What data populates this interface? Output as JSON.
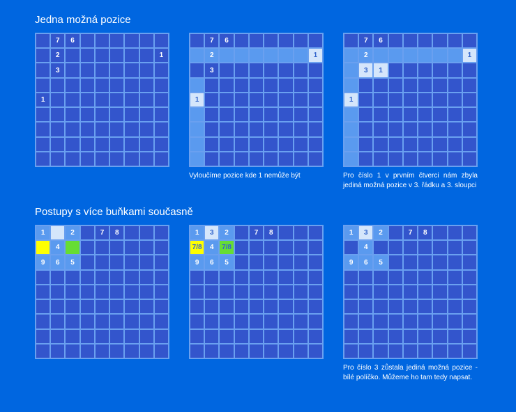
{
  "titles": {
    "section1": "Jedna možná pozice",
    "section2": "Postupy s více buňkami současně"
  },
  "captions": {
    "g2": "Vyloučíme pozice kde 1 nemůže být",
    "g3": "Pro číslo 1 v prvním čtverci nám zbyla jediná možná pozice v 3. řádku a 3. sloupci",
    "g6": "Pro číslo 3 zůstala jediná možná pozice - bílé políčko. Můžeme ho tam tedy napsat."
  },
  "grids": {
    "g1": {
      "cells": [
        {
          "r": 0,
          "c": 1,
          "v": "7"
        },
        {
          "r": 0,
          "c": 2,
          "v": "6"
        },
        {
          "r": 1,
          "c": 1,
          "v": "2"
        },
        {
          "r": 1,
          "c": 8,
          "v": "1"
        },
        {
          "r": 2,
          "c": 1,
          "v": "3"
        },
        {
          "r": 4,
          "c": 0,
          "v": "1"
        }
      ]
    },
    "g2": {
      "cells": [
        {
          "r": 0,
          "c": 1,
          "v": "7"
        },
        {
          "r": 0,
          "c": 2,
          "v": "6"
        },
        {
          "r": 1,
          "c": 0,
          "cls": "hl-light"
        },
        {
          "r": 1,
          "c": 1,
          "v": "2",
          "cls": "hl-light"
        },
        {
          "r": 1,
          "c": 2,
          "cls": "hl-light"
        },
        {
          "r": 1,
          "c": 3,
          "cls": "hl-light"
        },
        {
          "r": 1,
          "c": 4,
          "cls": "hl-light"
        },
        {
          "r": 1,
          "c": 5,
          "cls": "hl-light"
        },
        {
          "r": 1,
          "c": 6,
          "cls": "hl-light"
        },
        {
          "r": 1,
          "c": 7,
          "cls": "hl-light"
        },
        {
          "r": 1,
          "c": 8,
          "v": "1",
          "cls": "hl-white"
        },
        {
          "r": 2,
          "c": 1,
          "v": "3"
        },
        {
          "r": 3,
          "c": 0,
          "cls": "hl-light"
        },
        {
          "r": 4,
          "c": 0,
          "v": "1",
          "cls": "hl-white"
        },
        {
          "r": 5,
          "c": 0,
          "cls": "hl-light"
        },
        {
          "r": 6,
          "c": 0,
          "cls": "hl-light"
        },
        {
          "r": 7,
          "c": 0,
          "cls": "hl-light"
        },
        {
          "r": 8,
          "c": 0,
          "cls": "hl-light"
        }
      ]
    },
    "g3": {
      "cells": [
        {
          "r": 0,
          "c": 1,
          "v": "7"
        },
        {
          "r": 0,
          "c": 2,
          "v": "6"
        },
        {
          "r": 1,
          "c": 0,
          "cls": "hl-light"
        },
        {
          "r": 1,
          "c": 1,
          "v": "2",
          "cls": "hl-light"
        },
        {
          "r": 1,
          "c": 2,
          "cls": "hl-light"
        },
        {
          "r": 1,
          "c": 3,
          "cls": "hl-light"
        },
        {
          "r": 1,
          "c": 4,
          "cls": "hl-light"
        },
        {
          "r": 1,
          "c": 5,
          "cls": "hl-light"
        },
        {
          "r": 1,
          "c": 6,
          "cls": "hl-light"
        },
        {
          "r": 1,
          "c": 7,
          "cls": "hl-light"
        },
        {
          "r": 1,
          "c": 8,
          "v": "1",
          "cls": "hl-white"
        },
        {
          "r": 2,
          "c": 0,
          "cls": "hl-light"
        },
        {
          "r": 2,
          "c": 1,
          "v": "3",
          "cls": "hl-white"
        },
        {
          "r": 2,
          "c": 2,
          "v": "1",
          "cls": "hl-white"
        },
        {
          "r": 3,
          "c": 0,
          "cls": "hl-light"
        },
        {
          "r": 4,
          "c": 0,
          "v": "1",
          "cls": "hl-white"
        },
        {
          "r": 5,
          "c": 0,
          "cls": "hl-light"
        },
        {
          "r": 6,
          "c": 0,
          "cls": "hl-light"
        },
        {
          "r": 7,
          "c": 0,
          "cls": "hl-light"
        },
        {
          "r": 8,
          "c": 0,
          "cls": "hl-light"
        }
      ]
    },
    "g4": {
      "cells": [
        {
          "r": 0,
          "c": 0,
          "v": "1",
          "cls": "hl-light"
        },
        {
          "r": 0,
          "c": 1,
          "cls": "hl-white"
        },
        {
          "r": 0,
          "c": 2,
          "v": "2",
          "cls": "hl-light"
        },
        {
          "r": 0,
          "c": 4,
          "v": "7"
        },
        {
          "r": 0,
          "c": 5,
          "v": "8"
        },
        {
          "r": 1,
          "c": 0,
          "cls": "hl-yellow"
        },
        {
          "r": 1,
          "c": 1,
          "v": "4",
          "cls": "hl-light"
        },
        {
          "r": 1,
          "c": 2,
          "cls": "hl-green"
        },
        {
          "r": 2,
          "c": 0,
          "v": "9",
          "cls": "hl-light"
        },
        {
          "r": 2,
          "c": 1,
          "v": "6",
          "cls": "hl-light"
        },
        {
          "r": 2,
          "c": 2,
          "v": "5",
          "cls": "hl-light"
        }
      ]
    },
    "g5": {
      "cells": [
        {
          "r": 0,
          "c": 0,
          "v": "1",
          "cls": "hl-light"
        },
        {
          "r": 0,
          "c": 1,
          "v": "3",
          "cls": "hl-white"
        },
        {
          "r": 0,
          "c": 2,
          "v": "2",
          "cls": "hl-light"
        },
        {
          "r": 0,
          "c": 4,
          "v": "7"
        },
        {
          "r": 0,
          "c": 5,
          "v": "8"
        },
        {
          "r": 1,
          "c": 0,
          "v": "7/8",
          "cls": "hl-yellow"
        },
        {
          "r": 1,
          "c": 1,
          "v": "4",
          "cls": "hl-light"
        },
        {
          "r": 1,
          "c": 2,
          "v": "7/8",
          "cls": "hl-green"
        },
        {
          "r": 2,
          "c": 0,
          "v": "9",
          "cls": "hl-light"
        },
        {
          "r": 2,
          "c": 1,
          "v": "6",
          "cls": "hl-light"
        },
        {
          "r": 2,
          "c": 2,
          "v": "5",
          "cls": "hl-light"
        }
      ]
    },
    "g6": {
      "cells": [
        {
          "r": 0,
          "c": 0,
          "v": "1",
          "cls": "hl-light"
        },
        {
          "r": 0,
          "c": 1,
          "v": "3",
          "cls": "hl-white"
        },
        {
          "r": 0,
          "c": 2,
          "v": "2",
          "cls": "hl-light"
        },
        {
          "r": 0,
          "c": 4,
          "v": "7"
        },
        {
          "r": 0,
          "c": 5,
          "v": "8"
        },
        {
          "r": 1,
          "c": 1,
          "v": "4",
          "cls": "hl-light"
        },
        {
          "r": 2,
          "c": 0,
          "v": "9",
          "cls": "hl-light"
        },
        {
          "r": 2,
          "c": 1,
          "v": "6",
          "cls": "hl-light"
        },
        {
          "r": 2,
          "c": 2,
          "v": "5",
          "cls": "hl-light"
        }
      ]
    }
  }
}
